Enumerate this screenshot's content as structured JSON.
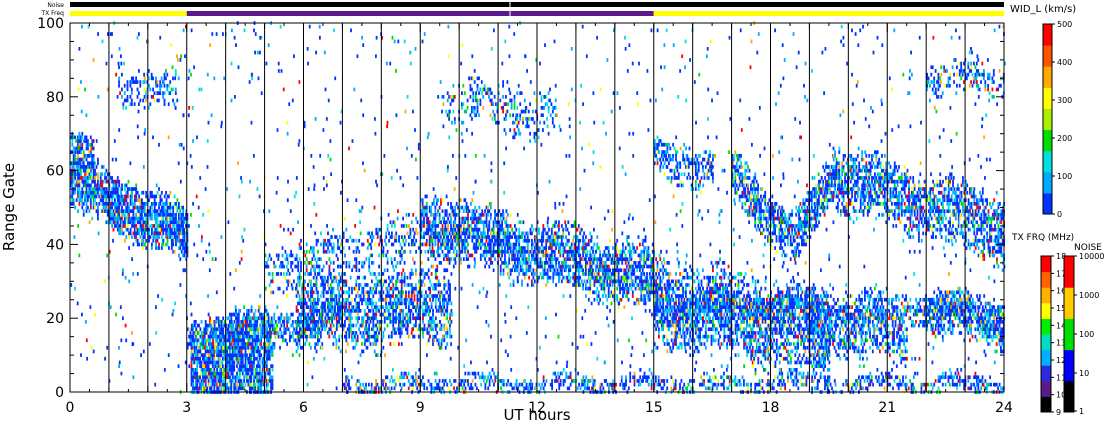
{
  "top_bars": {
    "noise_label": "Noise",
    "txfreq_label": "TX Freq",
    "noise_color": "#000000",
    "txfreq_segments": [
      {
        "from": 0,
        "to": 3,
        "color": "#ffff00"
      },
      {
        "from": 3,
        "to": 15,
        "color": "#5a1a8c"
      },
      {
        "from": 15,
        "to": 24,
        "color": "#ffff00"
      }
    ]
  },
  "chart_data": {
    "type": "heatmap",
    "xlabel": "UT hours",
    "ylabel": "Range Gate",
    "xlim": [
      0,
      24
    ],
    "ylim": [
      0,
      100
    ],
    "xticks": [
      0,
      3,
      6,
      9,
      12,
      15,
      18,
      21,
      24
    ],
    "yticks": [
      0,
      20,
      40,
      60,
      80,
      100
    ],
    "scan_boundaries": [
      1,
      2,
      3,
      4,
      5,
      6,
      7,
      8,
      9,
      10,
      11,
      12,
      13,
      14,
      15,
      16,
      17,
      18,
      19,
      20,
      21,
      22,
      23
    ],
    "bands": [
      {
        "t0": 0.0,
        "t1": 3.0,
        "g0": 57,
        "g1": 42,
        "w": 9,
        "d": 0.85
      },
      {
        "t0": 0.0,
        "t1": 0.6,
        "g0": 66,
        "g1": 62,
        "w": 6,
        "d": 0.6
      },
      {
        "t0": 3.1,
        "t1": 5.2,
        "g0": 7,
        "g1": 7,
        "w": 16,
        "d": 0.8
      },
      {
        "t0": 3.0,
        "t1": 7.0,
        "g0": 15,
        "g1": 20,
        "w": 5,
        "d": 0.6
      },
      {
        "t0": 5.8,
        "t1": 9.8,
        "g0": 21,
        "g1": 24,
        "w": 12,
        "d": 0.6
      },
      {
        "t0": 5.0,
        "t1": 9.0,
        "g0": 33,
        "g1": 42,
        "w": 7,
        "d": 0.3
      },
      {
        "t0": 9.0,
        "t1": 15.0,
        "g0": 46,
        "g1": 30,
        "w": 10,
        "d": 0.7
      },
      {
        "t0": 15.0,
        "t1": 19.5,
        "g0": 25,
        "g1": 15,
        "w": 14,
        "d": 0.6
      },
      {
        "t0": 15.0,
        "t1": 24.0,
        "g0": 24,
        "g1": 22,
        "w": 5,
        "d": 0.5
      },
      {
        "t0": 17.0,
        "t1": 18.6,
        "g0": 60,
        "g1": 40,
        "w": 8,
        "d": 0.7
      },
      {
        "t0": 18.6,
        "t1": 19.6,
        "g0": 40,
        "g1": 60,
        "w": 8,
        "d": 0.7
      },
      {
        "t0": 19.6,
        "t1": 24.0,
        "g0": 58,
        "g1": 44,
        "w": 10,
        "d": 0.65
      },
      {
        "t0": 19.0,
        "t1": 21.5,
        "g0": 18,
        "g1": 15,
        "w": 8,
        "d": 0.5
      },
      {
        "t0": 22.0,
        "t1": 24.0,
        "g0": 22,
        "g1": 18,
        "w": 7,
        "d": 0.6
      },
      {
        "t0": 1.2,
        "t1": 2.8,
        "g0": 84,
        "g1": 80,
        "w": 6,
        "d": 0.35
      },
      {
        "t0": 9.5,
        "t1": 12.5,
        "g0": 80,
        "g1": 75,
        "w": 8,
        "d": 0.25
      },
      {
        "t0": 22.0,
        "t1": 24.0,
        "g0": 84,
        "g1": 86,
        "w": 5,
        "d": 0.4
      },
      {
        "t0": 15.0,
        "t1": 16.5,
        "g0": 64,
        "g1": 60,
        "w": 6,
        "d": 0.45
      },
      {
        "t0": 7.0,
        "t1": 24.0,
        "g0": 2,
        "g1": 2,
        "w": 3,
        "d": 0.45
      }
    ]
  },
  "colorbars": {
    "velocity": {
      "title": "WID_L (km/s)",
      "ticks": [
        0,
        100,
        200,
        300,
        400,
        500
      ],
      "colors": [
        "#0033ff",
        "#00aaff",
        "#00e0e0",
        "#00dd00",
        "#aaee00",
        "#ffff00",
        "#ffaa00",
        "#ff5500",
        "#ff0000"
      ]
    },
    "txfreq": {
      "title": "TX FRQ (MHz)",
      "ticks": [
        9,
        10,
        11,
        12,
        13,
        14,
        15,
        16,
        17,
        18
      ],
      "colors": [
        "#000000",
        "#5a1a8c",
        "#2a2ae0",
        "#00b0ff",
        "#00e0c0",
        "#00ee00",
        "#ffff00",
        "#ffb000",
        "#ff6000",
        "#ff0000"
      ]
    },
    "noise": {
      "title": "NOISE",
      "ticks": [
        1,
        10,
        100,
        1000,
        10000
      ],
      "colors": [
        "#000000",
        "#0000ff",
        "#00dd00",
        "#ffcc00",
        "#ff0000"
      ]
    }
  }
}
